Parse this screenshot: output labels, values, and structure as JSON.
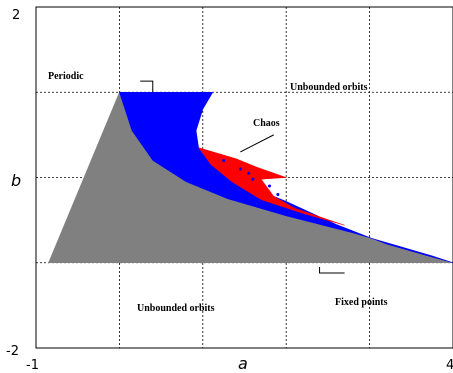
{
  "chart_data": {
    "type": "area",
    "title": "",
    "xlabel": "a",
    "ylabel": "b",
    "xlim": [
      -1,
      4
    ],
    "ylim": [
      -2,
      2
    ],
    "x_tick_labels": [
      "-1",
      "4"
    ],
    "y_tick_labels": [
      "2",
      "-2"
    ],
    "grid": true,
    "colors": {
      "fixed_points": "#808080",
      "periodic": "#0000ff",
      "chaos": "#ff0000",
      "axes": "#000000",
      "grid": "#000000"
    },
    "regions": [
      {
        "name": "Fixed points",
        "color": "#808080",
        "polygon": [
          [
            -0.85,
            -1.0
          ],
          [
            0.0,
            1.0
          ],
          [
            0.15,
            0.55
          ],
          [
            0.4,
            0.2
          ],
          [
            0.8,
            -0.05
          ],
          [
            1.3,
            -0.25
          ],
          [
            2.0,
            -0.45
          ],
          [
            2.8,
            -0.65
          ],
          [
            3.4,
            -0.82
          ],
          [
            3.75,
            -0.92
          ],
          [
            4.0,
            -1.0
          ]
        ]
      },
      {
        "name": "Periodic",
        "color": "#0000ff",
        "polygon": [
          [
            0.0,
            1.0
          ],
          [
            1.12,
            1.0
          ],
          [
            1.0,
            0.8
          ],
          [
            0.92,
            0.55
          ],
          [
            0.95,
            0.35
          ],
          [
            1.1,
            0.15
          ],
          [
            1.5,
            -0.08
          ],
          [
            2.0,
            -0.28
          ],
          [
            2.6,
            -0.55
          ],
          [
            3.2,
            -0.78
          ],
          [
            3.7,
            -0.92
          ],
          [
            4.0,
            -1.0
          ],
          [
            3.75,
            -0.92
          ],
          [
            3.4,
            -0.82
          ],
          [
            2.8,
            -0.65
          ],
          [
            2.0,
            -0.45
          ],
          [
            1.3,
            -0.25
          ],
          [
            0.8,
            -0.05
          ],
          [
            0.4,
            0.2
          ],
          [
            0.15,
            0.55
          ]
        ]
      },
      {
        "name": "Chaos",
        "color": "#ff0000",
        "polygon": [
          [
            0.95,
            0.35
          ],
          [
            1.4,
            0.22
          ],
          [
            1.65,
            0.12
          ],
          [
            2.0,
            0.0
          ],
          [
            1.7,
            -0.02
          ],
          [
            1.85,
            -0.22
          ],
          [
            2.1,
            -0.36
          ],
          [
            2.7,
            -0.56
          ],
          [
            2.2,
            -0.42
          ],
          [
            1.7,
            -0.26
          ],
          [
            1.35,
            -0.05
          ],
          [
            1.1,
            0.15
          ]
        ]
      }
    ],
    "annotations": [
      {
        "text": "Periodic",
        "x": -0.02,
        "y": 1.14
      },
      {
        "text": "Unbounded orbits",
        "x": 2.55,
        "y": 1.0
      },
      {
        "text": "Chaos",
        "x": 1.45,
        "y": 0.48
      },
      {
        "text": "Unbounded orbits",
        "x": 0.85,
        "y": -1.45
      },
      {
        "text": "Fixed points",
        "x": 2.35,
        "y": -1.1
      }
    ]
  }
}
